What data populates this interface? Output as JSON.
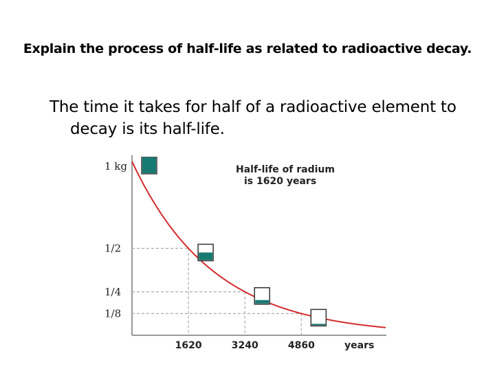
{
  "slide": {
    "question": "Explain the process of half-life as related to radioactive decay.",
    "answer": "The time it takes for half of a radioactive element to decay is its half-life."
  },
  "chart_data": {
    "type": "line",
    "title": "",
    "xlabel": "years",
    "ylabel": "",
    "annotation": [
      "Half-life of radium",
      "is 1620 years"
    ],
    "x_ticks": [
      1620,
      3240,
      4860
    ],
    "y_ticks": [
      {
        "label": "1 kg",
        "value": 1
      },
      {
        "label": "1/2",
        "value": 0.5
      },
      {
        "label": "1/4",
        "value": 0.25
      },
      {
        "label": "1/8",
        "value": 0.125
      }
    ],
    "xlim": [
      0,
      7300
    ],
    "ylim": [
      0,
      1
    ],
    "series": [
      {
        "x": [
          0,
          1620,
          3240,
          4860,
          6480,
          7300
        ],
        "y": [
          1,
          0.5,
          0.25,
          0.125,
          0.0625,
          0.044
        ]
      }
    ],
    "fraction_remaining_boxes": [
      {
        "x": 0,
        "fill": 1
      },
      {
        "x": 1620,
        "fill": 0.5
      },
      {
        "x": 3240,
        "fill": 0.25
      },
      {
        "x": 4860,
        "fill": 0.125
      }
    ],
    "colors": {
      "curve": "#d42a2a",
      "box_fill": "#167a72",
      "dashed": "#aaaaaa",
      "axis": "#999999"
    }
  }
}
